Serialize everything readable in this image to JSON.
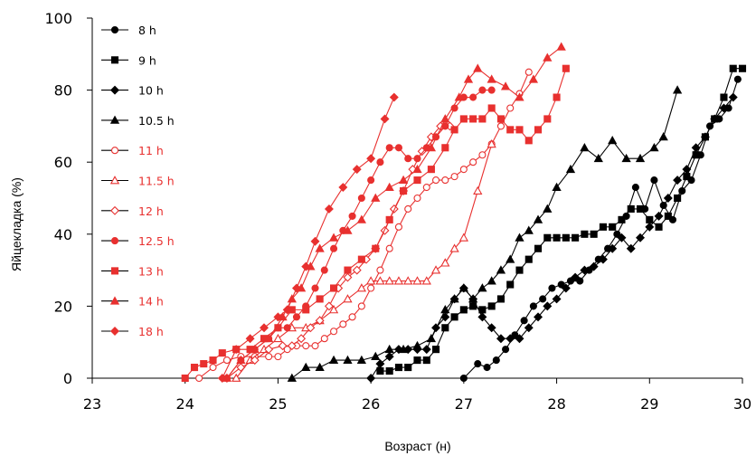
{
  "chart_data": {
    "type": "line",
    "xlabel": "Возраст (н)",
    "ylabel": "Яйцекладка (%)",
    "xlim": [
      23,
      30
    ],
    "ylim": [
      0,
      100
    ],
    "xticks": [
      "23",
      "24",
      "25",
      "26",
      "27",
      "28",
      "29",
      "30"
    ],
    "yticks": [
      "0",
      "20",
      "40",
      "60",
      "80",
      "100"
    ],
    "grid": false,
    "legend_position": "top-left",
    "colors": {
      "black": "#000000",
      "red": "#e8302f"
    },
    "series": [
      {
        "name": "8 h",
        "color": "#000000",
        "marker": "circle",
        "filled": true,
        "x": [
          27.0,
          27.15,
          27.25,
          27.35,
          27.45,
          27.55,
          27.65,
          27.75,
          27.85,
          27.95,
          28.05,
          28.15,
          28.25,
          28.35,
          28.45,
          28.55,
          28.65,
          28.75,
          28.85,
          28.95,
          29.05,
          29.15,
          29.25,
          29.35,
          29.45,
          29.55,
          29.65,
          29.75,
          29.85,
          29.95
        ],
        "y": [
          0,
          4,
          3,
          5,
          8,
          12,
          16,
          20,
          22,
          25,
          26,
          27,
          27,
          30,
          33,
          36,
          40,
          45,
          53,
          47,
          55,
          48,
          44,
          52,
          55,
          62,
          70,
          72,
          75,
          83
        ]
      },
      {
        "name": "9 h",
        "color": "#000000",
        "marker": "square",
        "filled": true,
        "x": [
          26.1,
          26.2,
          26.3,
          26.4,
          26.5,
          26.6,
          26.7,
          26.8,
          26.9,
          27.0,
          27.1,
          27.2,
          27.3,
          27.4,
          27.5,
          27.6,
          27.7,
          27.8,
          27.9,
          28.0,
          28.1,
          28.2,
          28.3,
          28.4,
          28.5,
          28.6,
          28.7,
          28.8,
          28.9,
          29.0,
          29.1,
          29.2,
          29.3,
          29.4,
          29.5,
          29.6,
          29.7,
          29.8,
          29.9,
          30.0
        ],
        "y": [
          2,
          2,
          3,
          3,
          5,
          5,
          8,
          14,
          17,
          19,
          20,
          19,
          20,
          22,
          26,
          30,
          33,
          36,
          39,
          39,
          39,
          39,
          40,
          40,
          42,
          42,
          44,
          47,
          47,
          44,
          42,
          45,
          50,
          56,
          62,
          67,
          72,
          78,
          86,
          86
        ]
      },
      {
        "name": "10 h",
        "color": "#000000",
        "marker": "diamond",
        "filled": true,
        "x": [
          26.0,
          26.1,
          26.2,
          26.3,
          26.4,
          26.5,
          26.6,
          26.7,
          26.8,
          26.9,
          27.0,
          27.1,
          27.2,
          27.3,
          27.4,
          27.5,
          27.6,
          27.7,
          27.8,
          27.9,
          28.0,
          28.1,
          28.2,
          28.3,
          28.4,
          28.5,
          28.6,
          28.7,
          28.8,
          28.9,
          29.0,
          29.1,
          29.2,
          29.3,
          29.4,
          29.5,
          29.6,
          29.7,
          29.8,
          29.9
        ],
        "y": [
          0,
          4,
          6,
          8,
          8,
          8,
          8,
          14,
          17,
          22,
          25,
          22,
          17,
          14,
          11,
          11,
          11,
          14,
          17,
          20,
          22,
          25,
          28,
          30,
          31,
          33,
          36,
          39,
          36,
          39,
          42,
          45,
          50,
          55,
          58,
          64,
          67,
          72,
          75,
          78
        ]
      },
      {
        "name": "10.5 h",
        "color": "#000000",
        "marker": "triangle",
        "filled": true,
        "x": [
          25.15,
          25.3,
          25.45,
          25.6,
          25.75,
          25.9,
          26.05,
          26.2,
          26.35,
          26.5,
          26.65,
          26.8,
          26.9,
          27.0,
          27.1,
          27.2,
          27.3,
          27.4,
          27.5,
          27.6,
          27.7,
          27.8,
          27.9,
          28.0,
          28.15,
          28.3,
          28.45,
          28.6,
          28.75,
          28.9,
          29.05,
          29.15,
          29.3
        ],
        "y": [
          0,
          3,
          3,
          5,
          5,
          5,
          6,
          8,
          8,
          9,
          11,
          19,
          22,
          25,
          22,
          25,
          27,
          30,
          33,
          39,
          41,
          44,
          47,
          53,
          58,
          64,
          61,
          66,
          61,
          61,
          64,
          67,
          80
        ]
      },
      {
        "name": "11 h",
        "color": "#e8302f",
        "marker": "circle",
        "filled": false,
        "x": [
          24.15,
          24.3,
          24.45,
          24.6,
          24.75,
          24.9,
          25.0,
          25.1,
          25.2,
          25.3,
          25.4,
          25.5,
          25.6,
          25.7,
          25.8,
          25.9,
          26.0,
          26.1,
          26.2,
          26.3,
          26.4,
          26.5,
          26.6,
          26.7,
          26.8,
          26.9,
          27.0,
          27.1,
          27.2,
          27.3,
          27.4,
          27.5,
          27.6,
          27.7
        ],
        "y": [
          0,
          3,
          5,
          6,
          6,
          6,
          6,
          8,
          9,
          9,
          9,
          11,
          13,
          15,
          17,
          20,
          25,
          30,
          36,
          42,
          47,
          50,
          53,
          55,
          55,
          56,
          58,
          60,
          62,
          65,
          70,
          75,
          79,
          85
        ]
      },
      {
        "name": "11.5 h",
        "color": "#e8302f",
        "marker": "triangle",
        "filled": false,
        "x": [
          24.55,
          24.7,
          24.85,
          25.0,
          25.15,
          25.3,
          25.45,
          25.6,
          25.75,
          25.9,
          26.0,
          26.1,
          26.2,
          26.3,
          26.4,
          26.5,
          26.6,
          26.7,
          26.8,
          26.9,
          27.0,
          27.15,
          27.3
        ],
        "y": [
          0,
          5,
          8,
          11,
          14,
          14,
          16,
          19,
          22,
          25,
          27,
          27,
          27,
          27,
          27,
          27,
          27,
          30,
          32,
          36,
          39,
          52,
          65
        ]
      },
      {
        "name": "12 h",
        "color": "#e8302f",
        "marker": "diamond",
        "filled": false,
        "x": [
          24.45,
          24.6,
          24.75,
          24.9,
          25.05,
          25.15,
          25.25,
          25.35,
          25.45,
          25.55,
          25.65,
          25.75,
          25.85,
          25.95,
          26.05,
          26.15,
          26.25,
          26.35,
          26.45,
          26.55,
          26.65,
          26.75,
          26.85
        ],
        "y": [
          0,
          3,
          5,
          8,
          9,
          9,
          11,
          14,
          16,
          20,
          25,
          28,
          30,
          33,
          36,
          41,
          47,
          52,
          58,
          63,
          67,
          70,
          70
        ]
      },
      {
        "name": "12.5 h",
        "color": "#e8302f",
        "marker": "circle",
        "filled": true,
        "x": [
          24.45,
          24.6,
          24.75,
          24.9,
          25.0,
          25.1,
          25.2,
          25.3,
          25.4,
          25.5,
          25.6,
          25.7,
          25.8,
          25.9,
          26.0,
          26.1,
          26.2,
          26.3,
          26.4,
          26.5,
          26.6,
          26.7,
          26.8,
          26.9,
          27.0,
          27.1,
          27.2,
          27.3
        ],
        "y": [
          0,
          5,
          8,
          11,
          14,
          14,
          17,
          20,
          25,
          30,
          36,
          41,
          45,
          50,
          55,
          60,
          64,
          64,
          61,
          61,
          64,
          67,
          70,
          75,
          78,
          78,
          80,
          80
        ]
      },
      {
        "name": "13 h",
        "color": "#e8302f",
        "marker": "square",
        "filled": true,
        "x": [
          24.0,
          24.1,
          24.2,
          24.3,
          24.4,
          24.55,
          24.7,
          24.85,
          25.0,
          25.15,
          25.3,
          25.45,
          25.6,
          25.75,
          25.9,
          26.05,
          26.2,
          26.35,
          26.5,
          26.65,
          26.8,
          26.9,
          27.0,
          27.1,
          27.2,
          27.3,
          27.4,
          27.5,
          27.6,
          27.7,
          27.8,
          27.9,
          28.0,
          28.1
        ],
        "y": [
          0,
          3,
          4,
          5,
          7,
          8,
          8,
          11,
          14,
          19,
          19,
          22,
          25,
          30,
          33,
          36,
          44,
          52,
          55,
          58,
          64,
          69,
          72,
          72,
          72,
          75,
          72,
          69,
          69,
          66,
          69,
          72,
          78,
          86
        ]
      },
      {
        "name": "14 h",
        "color": "#e8302f",
        "marker": "triangle",
        "filled": true,
        "x": [
          24.45,
          24.6,
          24.75,
          24.9,
          25.05,
          25.15,
          25.25,
          25.35,
          25.45,
          25.6,
          25.75,
          25.9,
          26.05,
          26.2,
          26.35,
          26.5,
          26.65,
          26.8,
          26.95,
          27.05,
          27.15,
          27.3,
          27.45,
          27.6,
          27.75,
          27.9,
          28.05
        ],
        "y": [
          0,
          5,
          8,
          11,
          17,
          22,
          25,
          31,
          36,
          39,
          41,
          44,
          50,
          53,
          55,
          58,
          64,
          72,
          78,
          83,
          86,
          83,
          81,
          78,
          83,
          89,
          92
        ]
      },
      {
        "name": "18 h",
        "color": "#e8302f",
        "marker": "diamond",
        "filled": true,
        "x": [
          24.4,
          24.55,
          24.7,
          24.85,
          25.0,
          25.1,
          25.2,
          25.3,
          25.4,
          25.55,
          25.7,
          25.85,
          26.0,
          26.15,
          26.25
        ],
        "y": [
          0,
          8,
          11,
          14,
          17,
          19,
          25,
          31,
          38,
          47,
          53,
          58,
          61,
          72,
          78
        ]
      }
    ]
  }
}
